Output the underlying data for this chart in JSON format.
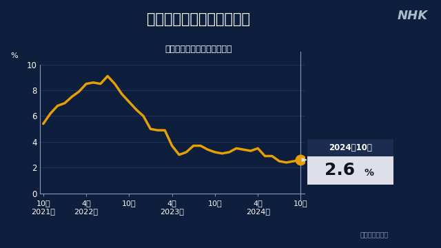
{
  "title": "アメリカ　消費者物価指数",
  "subtitle": "（総合・前年同月比上昇率）",
  "ylabel": "%",
  "source": "アメリカ労働省",
  "nhk_logo": "NHK",
  "bg_color": "#0d1f3c",
  "line_color": "#e8a000",
  "grid_color": "#1e3560",
  "axis_color": "#8899bb",
  "text_color": "#ffffff",
  "ylim": [
    0,
    10
  ],
  "yticks": [
    0,
    2,
    4,
    6,
    8,
    10
  ],
  "annotation_date": "2024年10月",
  "annotation_value": "2.6",
  "annotation_bg": "#1a2d50",
  "annotation_value_bg": "#dde0e8",
  "x_tick_positions": [
    0,
    6,
    12,
    18,
    24,
    30,
    36
  ],
  "x_tick_lines": [
    "10月",
    "4月",
    "10月",
    "4月",
    "10月",
    "4月",
    "10月"
  ],
  "x_tick_years": [
    "2021年",
    "2022年",
    "",
    "2023年",
    "",
    "2024年",
    ""
  ],
  "data_x": [
    0,
    1,
    2,
    3,
    4,
    5,
    6,
    7,
    8,
    9,
    10,
    11,
    12,
    13,
    14,
    15,
    16,
    17,
    18,
    19,
    20,
    21,
    22,
    23,
    24,
    25,
    26,
    27,
    28,
    29,
    30,
    31,
    32,
    33,
    34,
    35,
    36
  ],
  "data_y": [
    5.4,
    6.2,
    6.8,
    7.0,
    7.5,
    7.9,
    8.5,
    8.6,
    8.5,
    9.1,
    8.5,
    7.7,
    7.1,
    6.5,
    6.0,
    5.0,
    4.9,
    4.9,
    3.7,
    3.0,
    3.2,
    3.7,
    3.7,
    3.4,
    3.2,
    3.1,
    3.2,
    3.5,
    3.4,
    3.3,
    3.5,
    2.9,
    2.9,
    2.5,
    2.4,
    2.5,
    2.6
  ]
}
